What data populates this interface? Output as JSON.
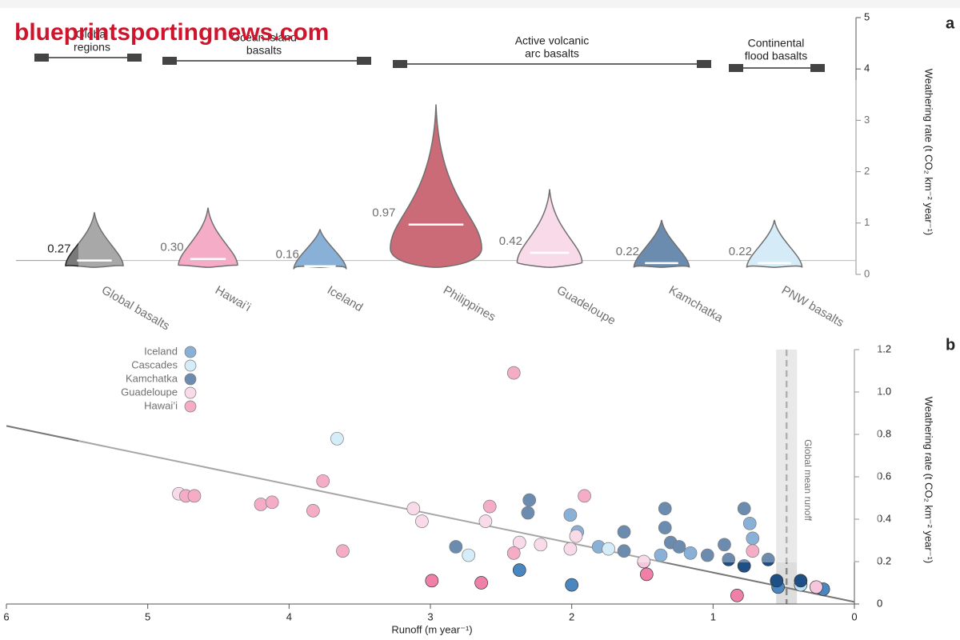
{
  "watermark": "blueprintsportingnews.com",
  "chart_data": [
    {
      "type": "violin",
      "panel": "a",
      "y_label": "Weathering rate (t CO₂ km⁻² year⁻¹)",
      "categories": [
        "Global basalts",
        "Hawai’i",
        "Iceland",
        "Philippines",
        "Guadeloupe",
        "Kamchatka",
        "PNW basalts"
      ],
      "values": [
        0.27,
        0.3,
        0.16,
        0.97,
        0.42,
        0.22,
        0.22
      ],
      "value_labels": [
        "0.27",
        "0.30",
        "0.16",
        "0.97",
        "0.42",
        "0.22",
        "0.22"
      ],
      "colors": [
        "#7a7a7a",
        "#f080a8",
        "#4a86c0",
        "#b01c30",
        "#f6c6de",
        "#1e4f85",
        "#bfe0f5"
      ],
      "groups": [
        {
          "lines": [
            "Continental",
            "flood basalts"
          ]
        },
        {
          "lines": [
            "Active volcanic",
            "arc basalts"
          ]
        },
        {
          "lines": [
            "Ocean island",
            "basalts"
          ]
        },
        {
          "lines": [
            "Global",
            "regions"
          ]
        }
      ],
      "ylim": [
        0,
        5
      ],
      "yticks": [
        0,
        1,
        2,
        3,
        4,
        5
      ]
    },
    {
      "type": "scatter",
      "panel": "b",
      "x_label": "Runoff (m year⁻¹)",
      "y_label": "Weathering rate (t CO₂ km⁻² year⁻¹)",
      "annotation": "Global mean runoff",
      "annotation_x": 0.48,
      "xlim": [
        0,
        6
      ],
      "xticks": [
        0,
        1,
        2,
        3,
        4,
        5,
        6
      ],
      "ylim": [
        0,
        1.2
      ],
      "yticks": [
        0,
        0.2,
        0.4,
        0.6,
        0.8,
        {
          "value": 1,
          "label": "1.0"
        },
        1.2
      ],
      "fit": {
        "x": [
          0,
          6
        ],
        "y": [
          0.01,
          0.84
        ],
        "color": "#777777"
      },
      "series": [
        {
          "name": "Iceland",
          "color": "#4a86c0",
          "x": [
            2.01,
            2.37,
            2.0,
            1.96,
            1.81,
            1.37,
            1.16,
            0.74,
            0.72,
            0.54,
            0.22
          ],
          "y": [
            0.42,
            0.16,
            0.09,
            0.34,
            0.27,
            0.23,
            0.24,
            0.38,
            0.31,
            0.08,
            0.07
          ]
        },
        {
          "name": "Cascades",
          "color": "#bfe3f5",
          "x": [
            3.66,
            2.73,
            1.74,
            0.38
          ],
          "y": [
            0.78,
            0.23,
            0.26,
            0.09
          ]
        },
        {
          "name": "Kamchatka",
          "color": "#1e4f85",
          "x": [
            2.3,
            2.31,
            2.82,
            1.63,
            1.34,
            1.34,
            1.3,
            1.24,
            1.04,
            0.92,
            0.89,
            0.78,
            0.61,
            0.55,
            0.38,
            0.78,
            1.63
          ],
          "y": [
            0.49,
            0.43,
            0.27,
            0.34,
            0.45,
            0.36,
            0.29,
            0.27,
            0.23,
            0.28,
            0.21,
            0.18,
            0.21,
            0.11,
            0.11,
            0.45,
            0.25
          ]
        },
        {
          "name": "Guadeloupe",
          "color": "#f6c6de",
          "x": [
            4.78,
            3.12,
            3.06,
            2.61,
            2.37,
            2.22,
            2.01,
            1.49,
            1.97,
            0.27
          ],
          "y": [
            0.52,
            0.45,
            0.39,
            0.39,
            0.29,
            0.28,
            0.26,
            0.2,
            0.32,
            0.08
          ]
        },
        {
          "name": "Hawai’i",
          "color": "#f080a8",
          "x": [
            2.41,
            3.76,
            4.73,
            4.67,
            4.2,
            4.12,
            3.83,
            3.62,
            2.99,
            2.64,
            1.91,
            2.58,
            2.41,
            1.47,
            0.72,
            0.83
          ],
          "y": [
            1.09,
            0.58,
            0.51,
            0.51,
            0.47,
            0.48,
            0.44,
            0.25,
            0.11,
            0.1,
            0.51,
            0.46,
            0.24,
            0.14,
            0.25,
            0.04
          ]
        }
      ]
    }
  ]
}
